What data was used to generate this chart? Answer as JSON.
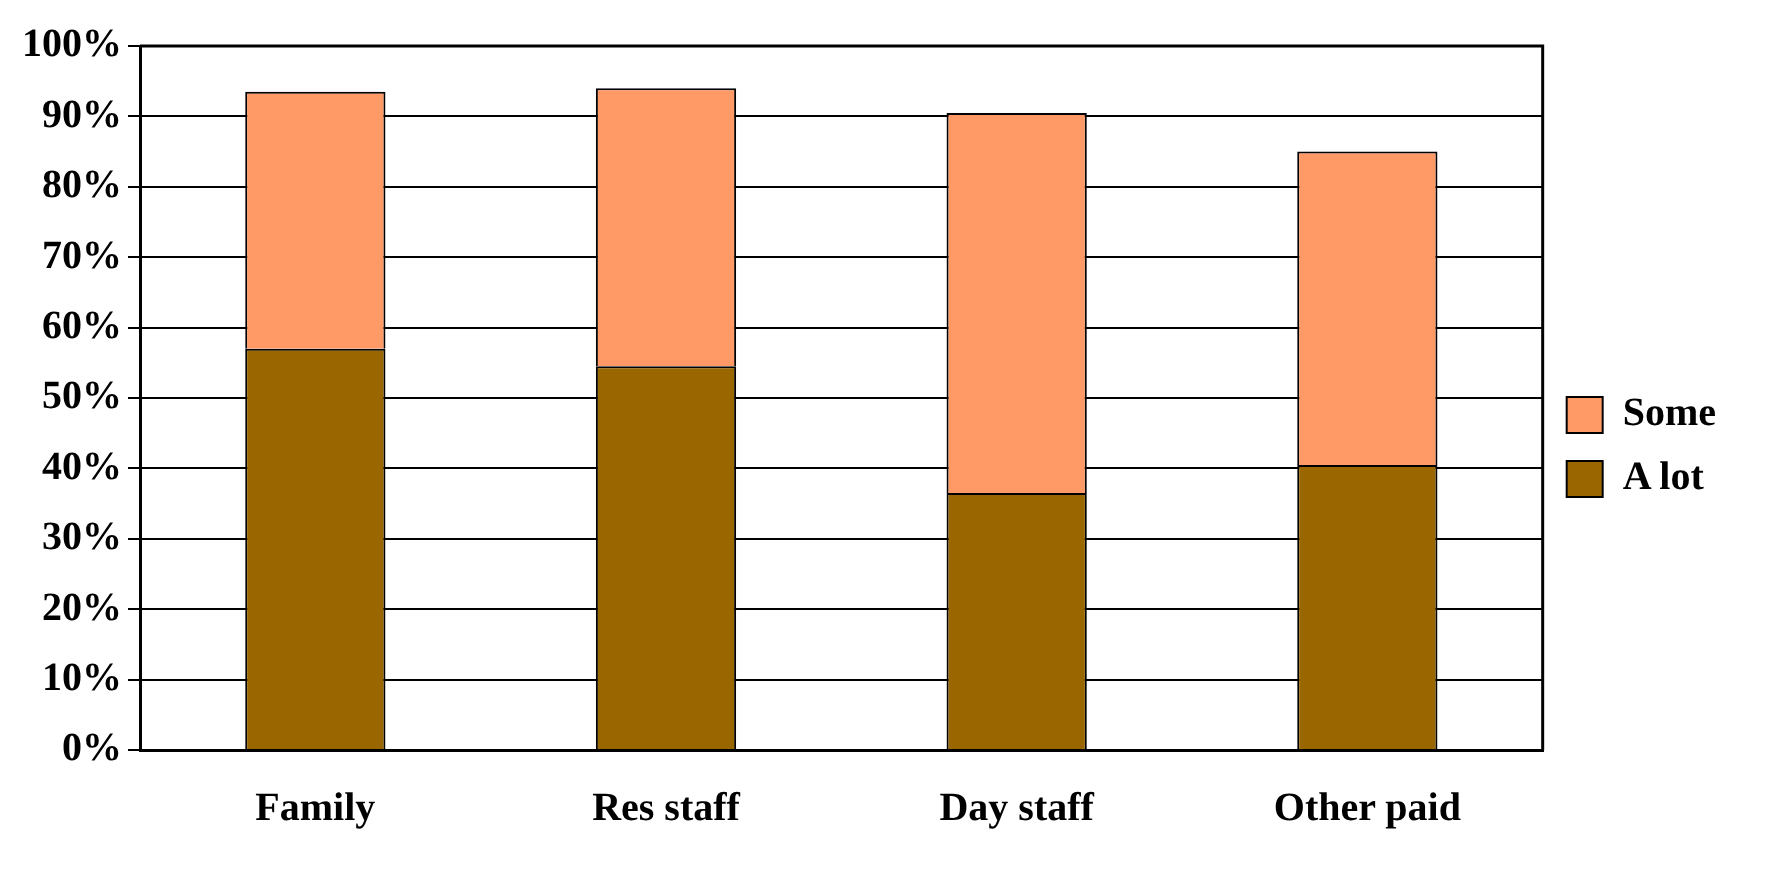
{
  "chart_data": {
    "type": "bar",
    "stacked": true,
    "categories": [
      "Family",
      "Res staff",
      "Day staff",
      "Other paid"
    ],
    "series": [
      {
        "name": "A lot",
        "color": "#996600",
        "values": [
          57,
          54.5,
          36.5,
          40.5
        ]
      },
      {
        "name": "Some",
        "color": "#ff9966",
        "values": [
          36.5,
          39.5,
          54,
          44.5
        ]
      }
    ],
    "ylim": [
      0,
      100
    ],
    "yticks": [
      {
        "value": 0,
        "label": "0%"
      },
      {
        "value": 10,
        "label": "10%"
      },
      {
        "value": 20,
        "label": "20%"
      },
      {
        "value": 30,
        "label": "30%"
      },
      {
        "value": 40,
        "label": "40%"
      },
      {
        "value": 50,
        "label": "50%"
      },
      {
        "value": 60,
        "label": "60%"
      },
      {
        "value": 70,
        "label": "70%"
      },
      {
        "value": 80,
        "label": "80%"
      },
      {
        "value": 90,
        "label": "90%"
      },
      {
        "value": 100,
        "label": "100%"
      }
    ],
    "grid": "y",
    "legend": "right"
  }
}
